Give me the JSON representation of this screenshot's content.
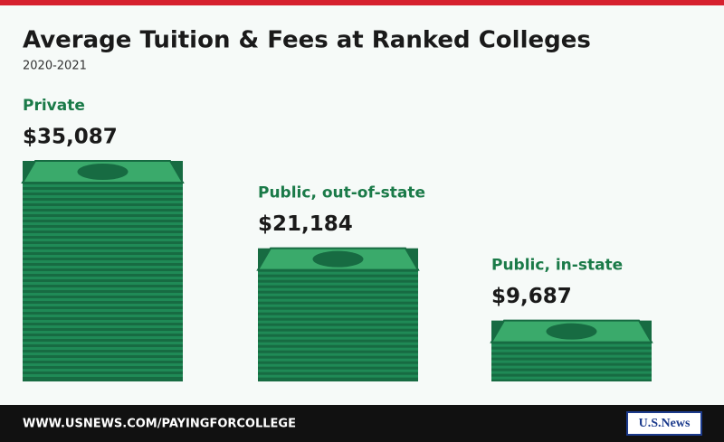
{
  "chart_data": {
    "type": "bar",
    "title": "Average Tuition & Fees at Ranked Colleges",
    "subtitle": "2020-2021",
    "categories": [
      "Private",
      "Public, out-of-state",
      "Public, in-state"
    ],
    "values": [
      35087,
      21184,
      9687
    ],
    "value_labels": [
      "$35,087",
      "$21,184",
      "$9,687"
    ],
    "color": "#1f8a56",
    "footer": "WWW.USNEWS.COM/PAYINGFORCOLLEGE",
    "logo": "U.S.News"
  }
}
